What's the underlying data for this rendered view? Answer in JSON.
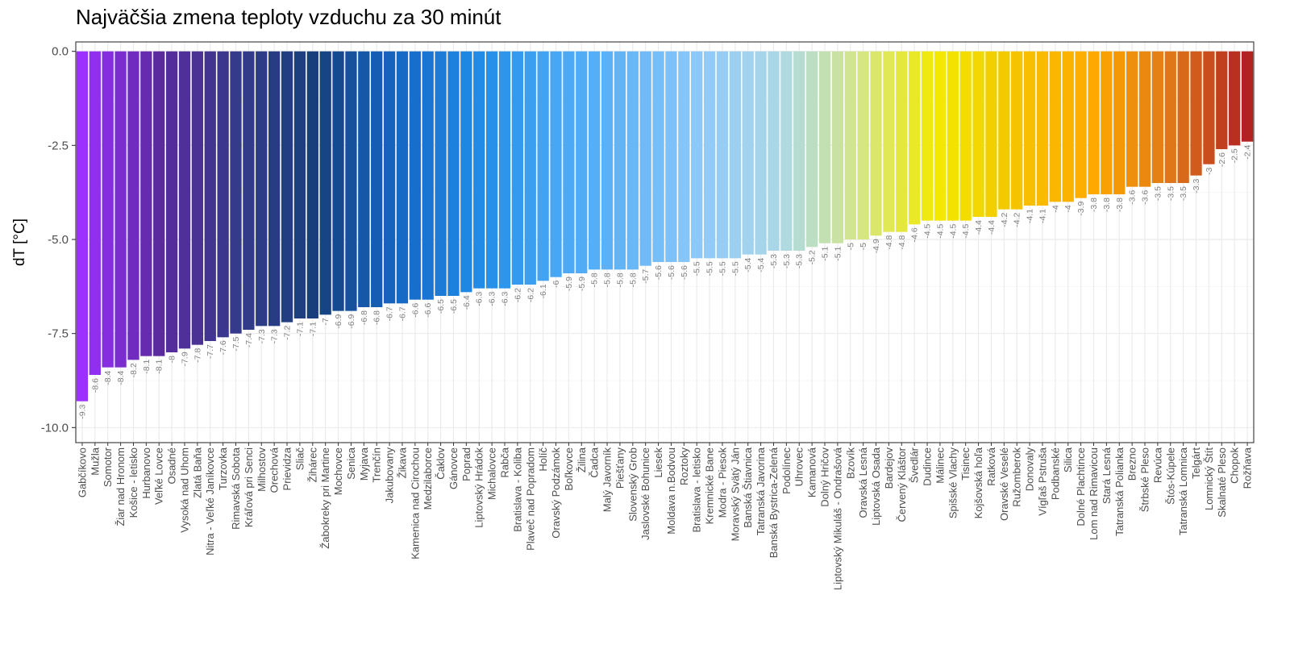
{
  "chart_data": {
    "type": "bar",
    "title": "Najväčšia zmena teploty vzduchu za 30 minút",
    "xlabel": "",
    "ylabel": "dT [°C]",
    "ylim": [
      -10.4,
      0.25
    ],
    "yticks": [
      0.0,
      -2.5,
      -5.0,
      -7.5,
      -10.0
    ],
    "ytick_labels": [
      "0.0",
      "-2.5",
      "-5.0",
      "-7.5",
      "-10.0"
    ],
    "grid": true,
    "legend": "none",
    "categories": [
      "Gabčíkovo",
      "Mužla",
      "Somotor",
      "Žiar nad Hronom",
      "Košice - letisko",
      "Hurbanovo",
      "Veľké Lovce",
      "Osadné",
      "Vysoká nad Uhom",
      "Zlatá Baňa",
      "Nitra - Veľké Janíkovce",
      "Turzovka",
      "Rimavská Sobota",
      "Kráľová pri Senci",
      "Milhostov",
      "Orechová",
      "Prievidza",
      "Sliač",
      "Žihárec",
      "Žabokreky pri Martine",
      "Mochovce",
      "Senica",
      "Myjava",
      "Trenčín",
      "Jakubovany",
      "Žikava",
      "Kamenica nad Cirochou",
      "Medzilaborce",
      "Čaklov",
      "Gánovce",
      "Poprad",
      "Liptovský Hrádok",
      "Michalovce",
      "Rabča",
      "Bratislava - Koliba",
      "Plaveč nad Popradom",
      "Holíč",
      "Oravský Podzámok",
      "Boľkovce",
      "Žilina",
      "Čadca",
      "Malý Javorník",
      "Piešťany",
      "Slovenský Grob",
      "Jaslovské Bohunice",
      "Liesek",
      "Moldava n.Bodvou",
      "Roztoky",
      "Bratislava - letisko",
      "Kremnické Bane",
      "Modra - Piesok",
      "Moravský Svätý Ján",
      "Banská Štiavnica",
      "Tatranská Javorina",
      "Banská  Bystrica-Zelená",
      "Podolínec",
      "Uhrovec",
      "Kamanová",
      "Dolný Hričov",
      "Liptovský Mikuláš - Ondrašová",
      "Bzovík",
      "Oravská Lesná",
      "Liptovská Osada",
      "Bardejov",
      "Červený Kláštor",
      "Švedlár",
      "Dudince",
      "Málinec",
      "Spišské Vlachy",
      "Tisinec",
      "Kojšovská hoľa",
      "Ratková",
      "Oravské Veselé",
      "Ružomberok",
      "Donovaly",
      "Vígľaš Pstruša",
      "Podbanské",
      "Silica",
      "Dolné Plachtince",
      "Lom nad Rimavicou",
      "Stará Lesná",
      "Tatranská Polianka",
      "Brezno",
      "Štrbské Pleso",
      "Revúca",
      "Štós-Kúpele",
      "Tatranská Lomnica",
      "Telgárt",
      "Lomnický Štít",
      "Skalnaté Pleso",
      "Chopok",
      "Rožňava"
    ],
    "values": [
      -9.3,
      -8.6,
      -8.4,
      -8.4,
      -8.2,
      -8.1,
      -8.1,
      -8,
      -7.9,
      -7.8,
      -7.7,
      -7.6,
      -7.5,
      -7.4,
      -7.3,
      -7.3,
      -7.2,
      -7.1,
      -7.1,
      -7,
      -6.9,
      -6.9,
      -6.8,
      -6.8,
      -6.7,
      -6.7,
      -6.6,
      -6.6,
      -6.5,
      -6.5,
      -6.4,
      -6.3,
      -6.3,
      -6.3,
      -6.2,
      -6.2,
      -6.1,
      -6,
      -5.9,
      -5.9,
      -5.8,
      -5.8,
      -5.8,
      -5.8,
      -5.7,
      -5.6,
      -5.6,
      -5.6,
      -5.5,
      -5.5,
      -5.5,
      -5.5,
      -5.4,
      -5.4,
      -5.3,
      -5.3,
      -5.3,
      -5.2,
      -5.1,
      -5.1,
      -5,
      -5,
      -4.9,
      -4.8,
      -4.8,
      -4.6,
      -4.5,
      -4.5,
      -4.5,
      -4.5,
      -4.4,
      -4.4,
      -4.2,
      -4.2,
      -4.1,
      -4.1,
      -4,
      -4,
      -3.9,
      -3.8,
      -3.8,
      -3.8,
      -3.6,
      -3.6,
      -3.5,
      -3.5,
      -3.5,
      -3.3,
      -3,
      -2.6,
      -2.5,
      -2.4
    ],
    "value_labels": [
      "-9.3",
      "-8.6",
      "-8.4",
      "-8.4",
      "-8.2",
      "-8.1",
      "-8.1",
      "-8",
      "-7.9",
      "-7.8",
      "-7.7",
      "-7.6",
      "-7.5",
      "-7.4",
      "-7.3",
      "-7.3",
      "-7.2",
      "-7.1",
      "-7.1",
      "-7",
      "-6.9",
      "-6.9",
      "-6.8",
      "-6.8",
      "-6.7",
      "-6.7",
      "-6.6",
      "-6.6",
      "-6.5",
      "-6.5",
      "-6.4",
      "-6.3",
      "-6.3",
      "-6.3",
      "-6.2",
      "-6.2",
      "-6.1",
      "-6",
      "-5.9",
      "-5.9",
      "-5.8",
      "-5.8",
      "-5.8",
      "-5.8",
      "-5.7",
      "-5.6",
      "-5.6",
      "-5.6",
      "-5.5",
      "-5.5",
      "-5.5",
      "-5.5",
      "-5.4",
      "-5.4",
      "-5.3",
      "-5.3",
      "-5.3",
      "-5.2",
      "-5.1",
      "-5.1",
      "-5",
      "-5",
      "-4.9",
      "-4.8",
      "-4.8",
      "-4.6",
      "-4.5",
      "-4.5",
      "-4.5",
      "-4.5",
      "-4.4",
      "-4.4",
      "-4.2",
      "-4.2",
      "-4.1",
      "-4.1",
      "-4",
      "-4",
      "-3.9",
      "-3.8",
      "-3.8",
      "-3.8",
      "-3.6",
      "-3.6",
      "-3.5",
      "-3.5",
      "-3.5",
      "-3.3",
      "-3",
      "-2.6",
      "-2.5",
      "-2.4"
    ],
    "color_scale": [
      "#9b30ff",
      "#5b2a9e",
      "#353a8a",
      "#173f7c",
      "#1565c0",
      "#1e88e5",
      "#42a5f5",
      "#64b5f6",
      "#90caf9",
      "#add8e6",
      "#d4e68a",
      "#f2ea00",
      "#f5c400",
      "#ffaa00",
      "#e07818",
      "#b22222"
    ],
    "colors": {
      "background": "#ffffff",
      "panel_border": "#333333",
      "grid_major": "#ebebeb",
      "grid_minor": "#f5f5f5",
      "tick_text": "#4d4d4d",
      "value_text": "#808080"
    }
  }
}
